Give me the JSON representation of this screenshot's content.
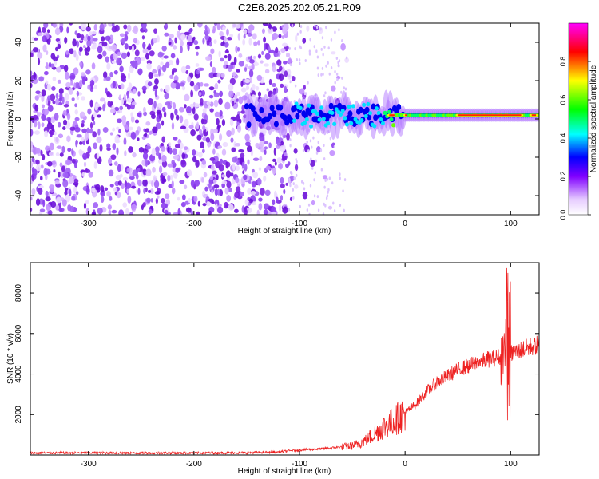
{
  "title": "C2E6.2025.202.05.21.R09",
  "chart_data": [
    {
      "type": "heatmap",
      "xlabel": "Height of straight line (km)",
      "ylabel": "Frequency (Hz)",
      "xlim": [
        -355,
        127
      ],
      "ylim": [
        -50,
        50
      ],
      "xticks": [
        -300,
        -200,
        -100,
        0,
        100
      ],
      "yticks": [
        -40,
        -20,
        0,
        20,
        40
      ],
      "colorbar": {
        "label": "Normalized spectral amplitude",
        "range": [
          0.0,
          1.0
        ],
        "ticks": [
          "0.0",
          "0.2",
          "0.4",
          "0.6",
          "0.8"
        ],
        "colormap": [
          "#ffffff",
          "#e6ccff",
          "#8000ff",
          "#0000ff",
          "#00ffff",
          "#00ff00",
          "#ffff00",
          "#ff0000",
          "#ff00ff"
        ]
      },
      "signal_center_hz": 2,
      "noise_region_km": [
        -355,
        -55
      ]
    },
    {
      "type": "line",
      "xlabel": "Height of straight line (km)",
      "ylabel": "SNR (10 * v/v)",
      "xlim": [
        -355,
        127
      ],
      "ylim": [
        0,
        9500
      ],
      "xticks": [
        -300,
        -200,
        -100,
        0,
        100
      ],
      "yticks": [
        2000,
        4000,
        6000,
        8000
      ],
      "color": "#ee2222",
      "series": [
        {
          "x": [
            -355,
            -300,
            -250,
            -200,
            -150,
            -120,
            -100,
            -80,
            -60,
            -50,
            -40,
            -30,
            -20,
            -10,
            0,
            10,
            20,
            30,
            40,
            50,
            60,
            70,
            80,
            90,
            95,
            98,
            100,
            105,
            110,
            120,
            127
          ],
          "y": [
            100,
            110,
            100,
            100,
            110,
            150,
            250,
            300,
            400,
            450,
            650,
            1000,
            1400,
            1700,
            2100,
            2500,
            3100,
            3600,
            3900,
            4200,
            4400,
            4600,
            4750,
            4850,
            5000,
            6000,
            5000,
            5100,
            5200,
            5350,
            5450
          ]
        }
      ]
    }
  ]
}
